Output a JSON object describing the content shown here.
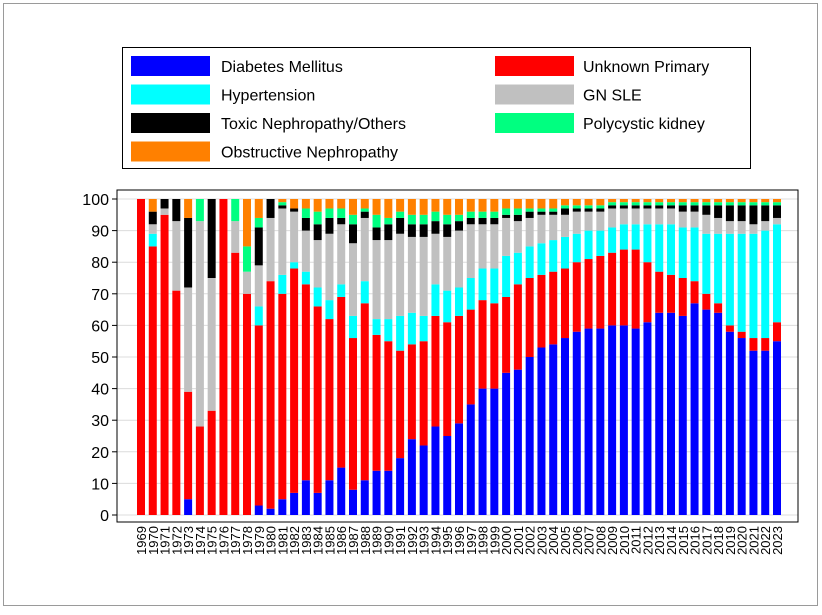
{
  "chart_data": {
    "type": "stacked_bar",
    "categories": [
      "1969",
      "1970",
      "1971",
      "1972",
      "1973",
      "1974",
      "1975",
      "1976",
      "1977",
      "1978",
      "1979",
      "1980",
      "1981",
      "1982",
      "1983",
      "1984",
      "1985",
      "1986",
      "1987",
      "1988",
      "1989",
      "1990",
      "1991",
      "1992",
      "1993",
      "1994",
      "1995",
      "1996",
      "1997",
      "1998",
      "1999",
      "2000",
      "2001",
      "2002",
      "2003",
      "2004",
      "2005",
      "2006",
      "2007",
      "2008",
      "2009",
      "2010",
      "2011",
      "2012",
      "2013",
      "2014",
      "2015",
      "2016",
      "2017",
      "2018",
      "2019",
      "2020",
      "2021",
      "2022",
      "2023"
    ],
    "series": [
      {
        "name": "Diabetes Mellitus",
        "color": "#0000ff",
        "values": [
          0,
          0,
          0,
          0,
          5,
          0,
          0,
          0,
          0,
          0,
          3,
          2,
          5,
          7,
          11,
          7,
          11,
          15,
          8,
          11,
          14,
          14,
          18,
          24,
          22,
          28,
          25,
          29,
          35,
          40,
          40,
          45,
          46,
          50,
          53,
          54,
          56,
          58,
          59,
          59,
          60,
          60,
          59,
          61,
          64,
          64,
          63,
          67,
          65,
          64,
          58,
          56,
          52,
          52,
          55
        ]
      },
      {
        "name": "Unknown Primary",
        "color": "#ff0000",
        "values": [
          100,
          85,
          95,
          71,
          34,
          28,
          33,
          100,
          83,
          70,
          57,
          72,
          65,
          71,
          62,
          59,
          51,
          54,
          48,
          56,
          43,
          41,
          34,
          30,
          33,
          35,
          36,
          34,
          30,
          28,
          27,
          24,
          27,
          25,
          23,
          23,
          22,
          22,
          22,
          23,
          23,
          24,
          25,
          19,
          13,
          12,
          12,
          7,
          5,
          3,
          2,
          2,
          4,
          4,
          6
        ]
      },
      {
        "name": "Hypertension",
        "color": "#00ffff",
        "values": [
          0,
          4,
          0,
          0,
          0,
          0,
          0,
          0,
          0,
          0,
          6,
          0,
          6,
          2,
          4,
          6,
          6,
          4,
          7,
          7,
          5,
          7,
          11,
          10,
          8,
          10,
          10,
          9,
          10,
          10,
          11,
          13,
          10,
          10,
          10,
          10,
          10,
          9,
          9,
          8,
          8,
          8,
          8,
          12,
          15,
          16,
          16,
          17,
          19,
          22,
          29,
          31,
          33,
          34,
          31
        ]
      },
      {
        "name": "GN SLE",
        "color": "#c0c0c0",
        "values": [
          0,
          3,
          2,
          22,
          33,
          65,
          42,
          0,
          10,
          7,
          13,
          20,
          21,
          16,
          13,
          15,
          21,
          19,
          23,
          20,
          25,
          25,
          26,
          24,
          25,
          16,
          17,
          18,
          17,
          14,
          14,
          12,
          10,
          9,
          9,
          8,
          7,
          7,
          6,
          6,
          6,
          5,
          5,
          5,
          5,
          5,
          5,
          5,
          6,
          5,
          4,
          4,
          3,
          3,
          2
        ]
      },
      {
        "name": "Toxic Nephropathy/Others",
        "color": "#000000",
        "values": [
          0,
          4,
          3,
          7,
          22,
          0,
          25,
          0,
          0,
          0,
          12,
          6,
          1,
          1,
          4,
          5,
          5,
          2,
          6,
          2,
          4,
          5,
          5,
          4,
          4,
          4,
          4,
          3,
          2,
          2,
          2,
          1,
          2,
          2,
          1,
          1,
          2,
          1,
          1,
          1,
          1,
          1,
          1,
          1,
          1,
          1,
          2,
          2,
          3,
          4,
          5,
          5,
          6,
          5,
          4
        ]
      },
      {
        "name": "Polycystic kidney",
        "color": "#00ff80",
        "values": [
          0,
          0,
          0,
          0,
          0,
          7,
          0,
          0,
          7,
          8,
          3,
          0,
          1,
          0,
          3,
          4,
          3,
          3,
          3,
          1,
          4,
          2,
          2,
          3,
          3,
          3,
          3,
          2,
          2,
          2,
          2,
          2,
          2,
          1,
          1,
          1,
          1,
          1,
          1,
          1,
          1,
          1,
          1,
          1,
          1,
          1,
          1,
          1,
          1,
          1,
          1,
          1,
          1,
          1,
          1
        ]
      },
      {
        "name": "Obstructive Nephropathy",
        "color": "#ff8000",
        "values": [
          0,
          4,
          0,
          0,
          6,
          0,
          0,
          0,
          0,
          15,
          6,
          0,
          1,
          3,
          3,
          4,
          3,
          3,
          5,
          3,
          5,
          6,
          4,
          5,
          5,
          4,
          5,
          5,
          4,
          4,
          4,
          3,
          3,
          3,
          3,
          3,
          2,
          2,
          2,
          2,
          1,
          1,
          1,
          1,
          1,
          1,
          1,
          1,
          1,
          1,
          1,
          1,
          1,
          1,
          1
        ]
      }
    ],
    "ylim": [
      0,
      100
    ],
    "yticks": [
      0,
      10,
      20,
      30,
      40,
      50,
      60,
      70,
      80,
      90,
      100
    ],
    "grid": true
  }
}
